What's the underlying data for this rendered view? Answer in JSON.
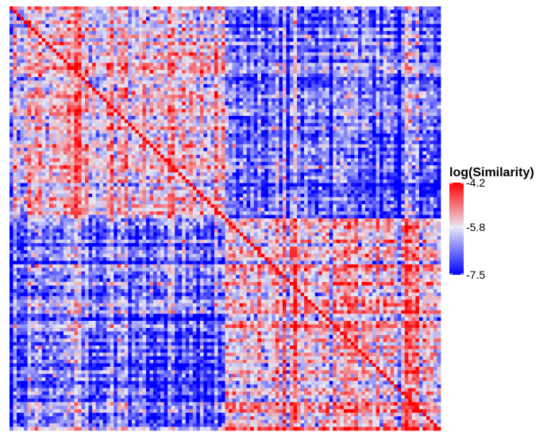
{
  "chart_data": {
    "type": "heatmap",
    "rows": 120,
    "cols": 120,
    "block_boundary_fraction": 0.5,
    "block_means": {
      "top_left": -5.6,
      "top_right": -6.55,
      "bottom_left": -6.6,
      "bottom_right": -5.55
    },
    "sub_block_means": {
      "top_right_lower": -6.95,
      "bottom_left_right": -7.0
    },
    "value_range": [
      -7.5,
      -4.2
    ],
    "colorscale": {
      "low": "#0000ff",
      "mid": "#e8e8f4",
      "high": "#ff0000",
      "midpoint": -5.8
    },
    "grid": false,
    "legend": {
      "title": "log(Similarity)",
      "placement": "right",
      "ticks": [
        {
          "value": -4.2,
          "label": "-4.2"
        },
        {
          "value": -5.8,
          "label": "-5.8"
        },
        {
          "value": -7.5,
          "label": "-7.5"
        }
      ]
    },
    "title": "",
    "xlabel": "",
    "ylabel": ""
  }
}
